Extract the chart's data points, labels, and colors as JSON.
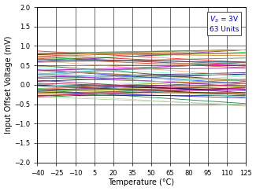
{
  "title": "",
  "xlabel": "Temperature (°C)",
  "ylabel": "Input Offset Voltage (mV)",
  "xlim": [
    -40,
    125
  ],
  "ylim": [
    -2,
    2
  ],
  "xticks": [
    -40,
    -25,
    -10,
    5,
    20,
    35,
    50,
    65,
    80,
    95,
    110,
    125
  ],
  "yticks": [
    -2,
    -1.5,
    -1,
    -0.5,
    0,
    0.5,
    1,
    1.5,
    2
  ],
  "annotation_color": "#0000cc",
  "n_units": 63,
  "temp_points": [
    -40,
    125
  ],
  "seed": 42,
  "line_width": 0.6,
  "colors": [
    "#ff0000",
    "#cc0000",
    "#990000",
    "#cc3300",
    "#ff6600",
    "#ff9900",
    "#cccc00",
    "#999900",
    "#666600",
    "#333300",
    "#006600",
    "#009900",
    "#00cc00",
    "#00ff00",
    "#006633",
    "#009966",
    "#00cccc",
    "#009999",
    "#006666",
    "#003333",
    "#0000ff",
    "#0000cc",
    "#000099",
    "#000066",
    "#330066",
    "#660099",
    "#9900cc",
    "#cc00ff",
    "#ff00ff",
    "#cc00cc",
    "#990099",
    "#660066",
    "#330033",
    "#993300",
    "#cc6600",
    "#ff9966",
    "#ffcc99",
    "#cccc99",
    "#999966",
    "#666633",
    "#336633",
    "#669966",
    "#99cc99",
    "#ccffcc",
    "#99ffcc",
    "#66ffcc",
    "#33cccc",
    "#66cccc",
    "#99cccc",
    "#cccccc",
    "#999999",
    "#666666",
    "#333333",
    "#996633",
    "#cc9966",
    "#ffcc66",
    "#ff9933",
    "#ff6633",
    "#cc3333",
    "#990033",
    "#660033",
    "#330000",
    "#003366"
  ]
}
